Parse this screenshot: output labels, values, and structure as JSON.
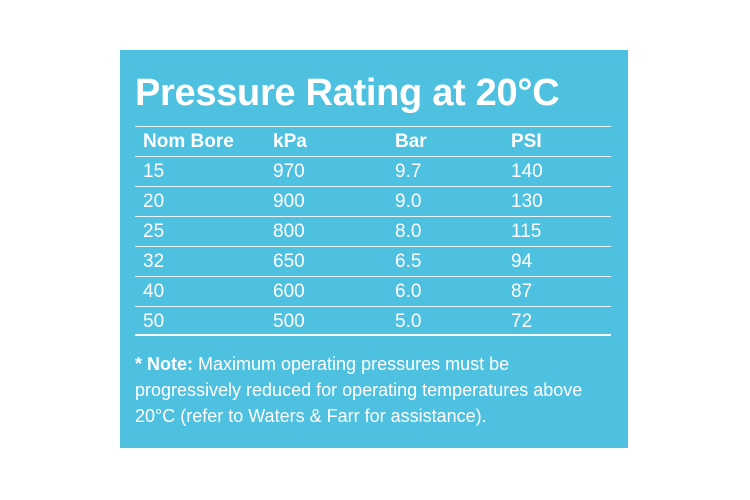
{
  "title": "Pressure Rating at 20°C",
  "table": {
    "headers": [
      "Nom Bore",
      "kPa",
      "Bar",
      "PSI"
    ],
    "rows": [
      [
        "15",
        "970",
        "9.7",
        "140"
      ],
      [
        "20",
        "900",
        "9.0",
        "130"
      ],
      [
        "25",
        "800",
        "8.0",
        "115"
      ],
      [
        "32",
        "650",
        "6.5",
        "94"
      ],
      [
        "40",
        "600",
        "6.0",
        "87"
      ],
      [
        "50",
        "500",
        "5.0",
        "72"
      ]
    ]
  },
  "note": {
    "label": "* Note:",
    "text": " Maximum operating pressures must be progressively reduced for operating temperatures above 20°C (refer to Waters & Farr for assistance)."
  },
  "colors": {
    "card_background": "#4ec0e0",
    "text": "#ffffff"
  }
}
